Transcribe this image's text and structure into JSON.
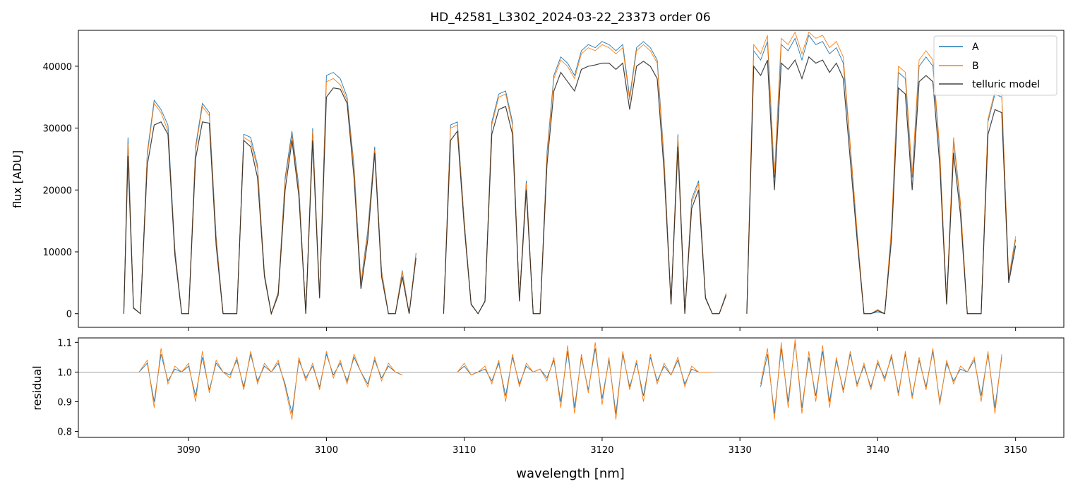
{
  "chart_data": [
    {
      "type": "line",
      "title": "HD_42581_L3302_2024-03-22_23373  order 06",
      "xlabel": "",
      "ylabel": "flux [ADU]",
      "xlim": [
        3082.0,
        3153.5
      ],
      "ylim": [
        -2200,
        45800
      ],
      "yticks": [
        0,
        10000,
        20000,
        30000,
        40000
      ],
      "xticks": [
        3090,
        3100,
        3110,
        3120,
        3130,
        3140,
        3150
      ],
      "grid": false,
      "legend_position": "top-right",
      "legend": [
        "A",
        "B",
        "telluric model"
      ],
      "colors": {
        "A": "#1f77b4",
        "B": "#ff7f0e",
        "telluric model": "#222222"
      },
      "segments": [
        {
          "x": [
            3085.3,
            3085.6,
            3086.0,
            3086.5,
            3087.0,
            3087.5,
            3088.0,
            3088.5,
            3089.0,
            3089.5,
            3090.0,
            3090.5,
            3091.0,
            3091.5,
            3092.0,
            3092.5,
            3093.0,
            3093.5,
            3094.0,
            3094.5,
            3095.0,
            3095.5,
            3096.0,
            3096.5,
            3097.0,
            3097.5,
            3098.0,
            3098.5,
            3099.0,
            3099.5,
            3100.0,
            3100.5,
            3101.0,
            3101.5,
            3102.0,
            3102.5,
            3103.0,
            3103.5,
            3104.0,
            3104.5,
            3105.0,
            3105.5,
            3106.0,
            3106.5
          ],
          "model": [
            0,
            25500,
            900,
            0,
            24000,
            30500,
            31000,
            29000,
            9500,
            0,
            0,
            25000,
            31000,
            30800,
            11000,
            0,
            0,
            0,
            28000,
            27000,
            22000,
            6000,
            0,
            3000,
            20000,
            28000,
            19000,
            0,
            28000,
            2500,
            35000,
            36500,
            36300,
            34000,
            22000,
            4000,
            12000,
            26000,
            6000,
            0,
            0,
            6000,
            0,
            9000
          ],
          "A": [
            0,
            28500,
            1000,
            0,
            26000,
            34500,
            33000,
            30500,
            10500,
            0,
            0,
            27000,
            34000,
            32500,
            12500,
            0,
            0,
            0,
            29000,
            28500,
            24000,
            6500,
            0,
            3500,
            22000,
            29500,
            20500,
            0,
            30000,
            3000,
            38500,
            39000,
            38000,
            35000,
            24000,
            5000,
            13500,
            27000,
            7000,
            0,
            0,
            7000,
            0,
            9800
          ],
          "B": [
            0,
            27500,
            900,
            0,
            25500,
            34000,
            32500,
            29500,
            10000,
            0,
            0,
            26500,
            33500,
            32000,
            12000,
            0,
            0,
            0,
            28500,
            27800,
            23500,
            6300,
            0,
            3300,
            21500,
            28800,
            20000,
            0,
            29500,
            2800,
            37500,
            38000,
            37000,
            34500,
            23500,
            4800,
            13000,
            26500,
            6800,
            0,
            0,
            6800,
            0,
            9600
          ]
        },
        {
          "x": [
            3108.5,
            3109.0,
            3109.5,
            3110.0,
            3110.5,
            3111.0,
            3111.5,
            3112.0,
            3112.5,
            3113.0,
            3113.5,
            3114.0,
            3114.5,
            3115.0,
            3115.5,
            3116.0,
            3116.5,
            3117.0,
            3117.5,
            3118.0,
            3118.5,
            3119.0,
            3119.5,
            3120.0,
            3120.5,
            3121.0,
            3121.5,
            3122.0,
            3122.5,
            3123.0,
            3123.5,
            3124.0,
            3124.5,
            3125.0,
            3125.5,
            3126.0,
            3126.5,
            3127.0,
            3127.5,
            3128.0,
            3128.5,
            3129.0
          ],
          "model": [
            0,
            28000,
            29500,
            14000,
            1500,
            0,
            2000,
            29000,
            33000,
            33500,
            29000,
            2000,
            20000,
            0,
            0,
            24000,
            36000,
            39000,
            37500,
            36000,
            39500,
            40000,
            40200,
            40500,
            40500,
            39500,
            40500,
            33000,
            40000,
            40800,
            40000,
            38000,
            23000,
            1500,
            27000,
            0,
            17000,
            20000,
            2500,
            0,
            0,
            3000
          ],
          "A": [
            0,
            30500,
            31000,
            15000,
            1600,
            0,
            2100,
            31000,
            35500,
            36000,
            31000,
            2200,
            21500,
            0,
            0,
            26000,
            38500,
            41500,
            40500,
            38500,
            42500,
            43500,
            43000,
            44000,
            43500,
            42500,
            43500,
            35000,
            43000,
            44000,
            43000,
            41000,
            25000,
            1600,
            29000,
            0,
            18500,
            21500,
            2700,
            0,
            0,
            3300
          ],
          "B": [
            0,
            30000,
            30500,
            14800,
            1500,
            0,
            2000,
            30500,
            35000,
            35500,
            30500,
            2100,
            21000,
            0,
            0,
            25500,
            38000,
            41000,
            40000,
            38000,
            42000,
            43000,
            42500,
            43500,
            43000,
            42000,
            43000,
            34500,
            42500,
            43500,
            42500,
            40500,
            24500,
            1500,
            28500,
            0,
            18000,
            21000,
            2600,
            0,
            0,
            3200
          ]
        },
        {
          "x": [
            3130.5,
            3131.0,
            3131.5,
            3132.0,
            3132.5,
            3133.0,
            3133.5,
            3134.0,
            3134.5,
            3135.0,
            3135.5,
            3136.0,
            3136.5,
            3137.0,
            3137.5,
            3138.0,
            3138.5,
            3139.0,
            3139.5,
            3140.0,
            3140.5,
            3141.0,
            3141.5,
            3142.0,
            3142.5,
            3143.0,
            3143.5,
            3144.0,
            3144.5,
            3145.0,
            3145.5,
            3146.0,
            3146.5,
            3147.0,
            3147.5,
            3148.0,
            3148.5,
            3149.0,
            3149.5,
            3150.0
          ],
          "model": [
            0,
            40000,
            38500,
            41000,
            20000,
            40500,
            39500,
            41000,
            38000,
            41500,
            40500,
            41000,
            39000,
            40500,
            38000,
            25000,
            12000,
            0,
            0,
            500,
            0,
            12000,
            36500,
            35500,
            20000,
            37500,
            38500,
            37500,
            24000,
            1500,
            26000,
            16000,
            0,
            0,
            0,
            29000,
            33000,
            32500,
            5000,
            11000
          ],
          "A": [
            0,
            42500,
            41000,
            44000,
            22000,
            43500,
            42500,
            44500,
            41000,
            45000,
            43500,
            44000,
            42000,
            43000,
            40500,
            27000,
            13000,
            0,
            0,
            300,
            0,
            13500,
            39000,
            38000,
            22000,
            40000,
            41500,
            40000,
            26000,
            1700,
            28000,
            17500,
            0,
            0,
            0,
            31000,
            35500,
            35000,
            5500,
            12000
          ],
          "B": [
            0,
            43500,
            42000,
            45000,
            22500,
            44500,
            43500,
            45500,
            42000,
            45500,
            44500,
            45000,
            43000,
            44000,
            41500,
            27500,
            13500,
            0,
            0,
            700,
            0,
            14000,
            40000,
            39000,
            22500,
            41000,
            42500,
            41000,
            26500,
            1800,
            28500,
            18000,
            0,
            0,
            0,
            31500,
            36000,
            35500,
            5800,
            12500
          ]
        }
      ]
    },
    {
      "type": "line",
      "title": "",
      "xlabel": "wavelength [nm]",
      "ylabel": "residual",
      "xlim": [
        3082.0,
        3153.5
      ],
      "ylim": [
        0.78,
        1.115
      ],
      "yticks": [
        0.8,
        0.9,
        1.0,
        1.1
      ],
      "xticks": [
        3090,
        3100,
        3110,
        3120,
        3130,
        3140,
        3150
      ],
      "reference_line": 1.0,
      "grid": false,
      "colors": {
        "A": "#1f77b4",
        "B": "#ff7f0e",
        "reference": "#7f7f7f"
      },
      "segments": [
        {
          "x": [
            3086.4,
            3087.0,
            3087.5,
            3088.0,
            3088.5,
            3089.0,
            3089.5,
            3090.0,
            3090.5,
            3091.0,
            3091.5,
            3092.0,
            3092.5,
            3093.0,
            3093.5,
            3094.0,
            3094.5,
            3095.0,
            3095.5,
            3096.0,
            3096.5,
            3097.0,
            3097.5,
            3098.0,
            3098.5,
            3099.0,
            3099.5,
            3100.0,
            3100.5,
            3101.0,
            3101.5,
            3102.0,
            3102.5,
            3103.0,
            3103.5,
            3104.0,
            3104.5,
            3105.0,
            3105.5
          ],
          "A": [
            1.0,
            1.03,
            0.9,
            1.06,
            0.97,
            1.01,
            1.0,
            1.02,
            0.92,
            1.05,
            0.94,
            1.03,
            1.0,
            0.99,
            1.04,
            0.95,
            1.06,
            0.97,
            1.02,
            1.0,
            1.03,
            0.96,
            0.86,
            1.04,
            0.98,
            1.02,
            0.95,
            1.06,
            0.99,
            1.03,
            0.97,
            1.05,
            1.0,
            0.96,
            1.04,
            0.98,
            1.02,
            1.0,
            0.99
          ],
          "B": [
            1.0,
            1.04,
            0.88,
            1.08,
            0.96,
            1.02,
            1.0,
            1.03,
            0.9,
            1.07,
            0.93,
            1.04,
            1.0,
            0.98,
            1.05,
            0.94,
            1.07,
            0.96,
            1.03,
            1.0,
            1.04,
            0.95,
            0.84,
            1.05,
            0.97,
            1.03,
            0.94,
            1.07,
            0.98,
            1.04,
            0.96,
            1.06,
            1.0,
            0.95,
            1.05,
            0.97,
            1.03,
            1.0,
            0.99
          ]
        },
        {
          "x": [
            3109.5,
            3110.0,
            3110.5,
            3111.0,
            3111.5,
            3112.0,
            3112.5,
            3113.0,
            3113.5,
            3114.0,
            3114.5,
            3115.0,
            3115.5,
            3116.0,
            3116.5,
            3117.0,
            3117.5,
            3118.0,
            3118.5,
            3119.0,
            3119.5,
            3120.0,
            3120.5,
            3121.0,
            3121.5,
            3122.0,
            3122.5,
            3123.0,
            3123.5,
            3124.0,
            3124.5,
            3125.0,
            3125.5,
            3126.0,
            3126.5,
            3127.0,
            3127.5,
            3128.0
          ],
          "A": [
            1.0,
            1.02,
            0.99,
            1.0,
            1.01,
            0.97,
            1.03,
            0.92,
            1.05,
            0.96,
            1.02,
            1.0,
            1.01,
            0.98,
            1.04,
            0.9,
            1.07,
            0.88,
            1.05,
            0.94,
            1.08,
            0.91,
            1.04,
            0.86,
            1.06,
            0.95,
            1.03,
            0.92,
            1.05,
            0.97,
            1.02,
            0.99,
            1.04,
            0.96,
            1.01,
            1.0,
            1.0,
            1.0
          ],
          "B": [
            1.0,
            1.03,
            0.99,
            1.0,
            1.02,
            0.96,
            1.04,
            0.9,
            1.06,
            0.95,
            1.03,
            1.0,
            1.01,
            0.97,
            1.05,
            0.88,
            1.09,
            0.86,
            1.06,
            0.93,
            1.1,
            0.89,
            1.05,
            0.84,
            1.07,
            0.94,
            1.04,
            0.9,
            1.06,
            0.96,
            1.03,
            0.99,
            1.05,
            0.95,
            1.02,
            1.0,
            1.0,
            1.0
          ]
        },
        {
          "x": [
            3131.5,
            3132.0,
            3132.5,
            3133.0,
            3133.5,
            3134.0,
            3134.5,
            3135.0,
            3135.5,
            3136.0,
            3136.5,
            3137.0,
            3137.5,
            3138.0,
            3138.5,
            3139.0,
            3139.5,
            3140.0,
            3140.5,
            3141.0,
            3141.5,
            3142.0,
            3142.5,
            3143.0,
            3143.5,
            3144.0,
            3144.5,
            3145.0,
            3145.5,
            3146.0,
            3146.5,
            3147.0,
            3147.5,
            3148.0,
            3148.5,
            3149.0
          ],
          "A": [
            0.95,
            1.06,
            0.86,
            1.08,
            0.9,
            1.1,
            0.88,
            1.05,
            0.92,
            1.07,
            0.9,
            1.04,
            0.94,
            1.06,
            0.96,
            1.02,
            0.95,
            1.03,
            0.98,
            1.05,
            0.93,
            1.06,
            0.92,
            1.04,
            0.95,
            1.07,
            0.9,
            1.03,
            0.97,
            1.01,
            1.0,
            1.04,
            0.92,
            1.06,
            0.88,
            1.05
          ],
          "B": [
            0.96,
            1.08,
            0.84,
            1.1,
            0.88,
            1.11,
            0.86,
            1.07,
            0.9,
            1.09,
            0.88,
            1.05,
            0.93,
            1.07,
            0.95,
            1.03,
            0.94,
            1.04,
            0.97,
            1.06,
            0.92,
            1.07,
            0.91,
            1.05,
            0.94,
            1.08,
            0.89,
            1.04,
            0.96,
            1.02,
            1.0,
            1.05,
            0.9,
            1.07,
            0.86,
            1.06
          ]
        }
      ]
    }
  ]
}
